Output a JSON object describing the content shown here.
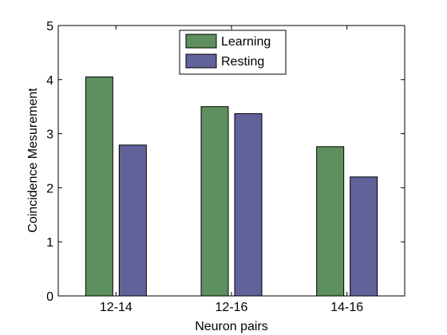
{
  "chart_data": {
    "type": "bar",
    "categories": [
      "12-14",
      "12-16",
      "14-16"
    ],
    "series": [
      {
        "name": "Learning",
        "values": [
          4.05,
          3.5,
          2.76
        ],
        "color": "#5e8f5e"
      },
      {
        "name": "Resting",
        "values": [
          2.79,
          3.37,
          2.2
        ],
        "color": "#62629a"
      }
    ],
    "xlabel": "Neuron pairs",
    "ylabel": "Coincidence Mesurement",
    "ylim": [
      0,
      5
    ],
    "yticks": [
      "0",
      "1",
      "2",
      "3",
      "4",
      "5"
    ],
    "grid": false,
    "legend_position": "top-center"
  }
}
